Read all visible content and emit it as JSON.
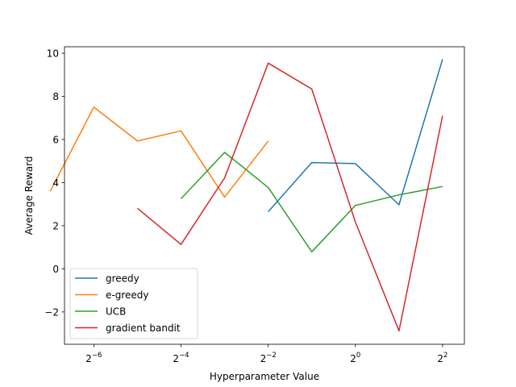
{
  "chart_data": {
    "type": "line",
    "title": "",
    "xlabel": "Hyperparameter Value",
    "ylabel": "Average Reward",
    "x_scale": "log2",
    "xlim": [
      0.0098,
      5.66
    ],
    "ylim": [
      -3.5,
      10.3
    ],
    "x_ticks": [
      {
        "exp": -6,
        "base": "2",
        "sup": "−6"
      },
      {
        "exp": -4,
        "base": "2",
        "sup": "−4"
      },
      {
        "exp": -2,
        "base": "2",
        "sup": "−2"
      },
      {
        "exp": 0,
        "base": "2",
        "sup": "0"
      },
      {
        "exp": 2,
        "base": "2",
        "sup": "2"
      }
    ],
    "y_ticks": [
      {
        "value": -2,
        "label": "−2"
      },
      {
        "value": 0,
        "label": "0"
      },
      {
        "value": 2,
        "label": "2"
      },
      {
        "value": 4,
        "label": "4"
      },
      {
        "value": 6,
        "label": "6"
      },
      {
        "value": 8,
        "label": "8"
      },
      {
        "value": 10,
        "label": "10"
      }
    ],
    "grid": false,
    "legend_position": "lower-left",
    "series": [
      {
        "name": "greedy",
        "color": "#1f77b4",
        "x": [
          0.25,
          0.5,
          1,
          2,
          4
        ],
        "y": [
          2.65,
          4.93,
          4.88,
          2.97,
          9.72
        ]
      },
      {
        "name": "e-greedy",
        "color": "#ff7f0e",
        "x": [
          0.0078125,
          0.015625,
          0.03125,
          0.0625,
          0.125,
          0.25
        ],
        "y": [
          3.6,
          7.5,
          5.93,
          6.4,
          3.33,
          5.93
        ]
      },
      {
        "name": "UCB",
        "color": "#2ca02c",
        "x": [
          0.0625,
          0.125,
          0.25,
          0.5,
          1,
          2,
          4
        ],
        "y": [
          3.25,
          5.4,
          3.77,
          0.79,
          2.94,
          3.43,
          3.82
        ]
      },
      {
        "name": "gradient bandit",
        "color": "#d62728",
        "x": [
          0.03125,
          0.0625,
          0.125,
          0.25,
          0.5,
          1,
          2,
          4
        ],
        "y": [
          2.81,
          1.13,
          4.22,
          9.54,
          8.34,
          2.17,
          -2.88,
          7.1
        ]
      }
    ]
  }
}
